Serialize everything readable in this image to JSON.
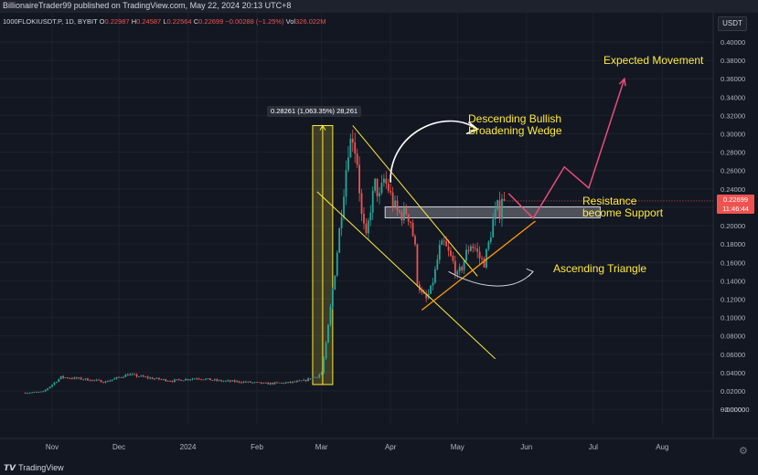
{
  "header": {
    "text": "BillionaireTrader99 published on TradingView.com, May 22, 2024 20:13 UTC+8"
  },
  "symbol": {
    "name": "1000FLOKIUSDT.P, 1D, BYBIT",
    "o_label": "O",
    "o": "0.22987",
    "h_label": "H",
    "h": "0.24587",
    "l_label": "L",
    "l": "0.22564",
    "c_label": "C",
    "c": "0.22699",
    "change": "−0.00288 (−1.25%)",
    "vol_label": "Vol",
    "vol": "326.022M"
  },
  "currency_button": "USDT",
  "measure_label": "0.28261 (1,063.35%) 28,261",
  "last_price": {
    "value": "0.22699",
    "countdown": "11:46:44"
  },
  "annotations": {
    "expected": "Expected Movement",
    "wedge_line1": "Descending Bullish",
    "wedge_line2": "Broadening Wedge",
    "resistance_line1": "Resistance",
    "resistance_line2": "become Support",
    "triangle": "Ascending Triangle"
  },
  "footer": {
    "logo_mark": "𝙏𝙑",
    "logo_text": "TradingView",
    "gear": "⚙"
  },
  "colors": {
    "bg": "#131722",
    "up": "#26a69a",
    "down": "#ef5350",
    "annotation": "#ffeb3b",
    "support_line": "#ff9800",
    "projection": "#e84d7a",
    "measure": "#ffeb3b"
  },
  "chart_data": {
    "type": "candlestick",
    "title": "1000FLOKIUSDT.P, 1D, BYBIT",
    "x_axis": {
      "ticks": [
        "Nov",
        "Dec",
        "2024",
        "Feb",
        "Mar",
        "Apr",
        "May",
        "Jun",
        "Jul",
        "Aug"
      ]
    },
    "y_axis": {
      "ticks": [
        "0.40000",
        "0.38000",
        "0.36000",
        "0.34000",
        "0.32000",
        "0.30000",
        "0.28000",
        "0.26000",
        "0.24000",
        "0.22000",
        "0.20000",
        "0.18000",
        "0.16000",
        "0.14000",
        "0.12000",
        "0.10000",
        "0.08000",
        "0.06000",
        "0.04000",
        "0.02000",
        "0.00000",
        "−0.00000"
      ],
      "ylim": [
        -0.02,
        0.41
      ]
    },
    "grid": true,
    "price_path": [
      [
        "2023-10-20",
        0.018
      ],
      [
        "2023-10-28",
        0.019
      ],
      [
        "2023-11-05",
        0.035
      ],
      [
        "2023-11-15",
        0.033
      ],
      [
        "2023-11-25",
        0.03
      ],
      [
        "2023-12-05",
        0.038
      ],
      [
        "2023-12-15",
        0.034
      ],
      [
        "2023-12-25",
        0.031
      ],
      [
        "2024-01-05",
        0.034
      ],
      [
        "2024-01-15",
        0.031
      ],
      [
        "2024-01-25",
        0.03
      ],
      [
        "2024-02-05",
        0.028
      ],
      [
        "2024-02-15",
        0.029
      ],
      [
        "2024-02-22",
        0.031
      ],
      [
        "2024-02-28",
        0.036
      ],
      [
        "2024-03-01",
        0.04
      ],
      [
        "2024-03-03",
        0.07
      ],
      [
        "2024-03-05",
        0.11
      ],
      [
        "2024-03-07",
        0.15
      ],
      [
        "2024-03-09",
        0.195
      ],
      [
        "2024-03-11",
        0.24
      ],
      [
        "2024-03-13",
        0.285
      ],
      [
        "2024-03-15",
        0.298
      ],
      [
        "2024-03-17",
        0.27
      ],
      [
        "2024-03-19",
        0.21
      ],
      [
        "2024-03-21",
        0.185
      ],
      [
        "2024-03-23",
        0.22
      ],
      [
        "2024-03-25",
        0.245
      ],
      [
        "2024-03-27",
        0.23
      ],
      [
        "2024-03-29",
        0.25
      ],
      [
        "2024-03-31",
        0.24
      ],
      [
        "2024-04-02",
        0.225
      ],
      [
        "2024-04-04",
        0.215
      ],
      [
        "2024-04-06",
        0.212
      ],
      [
        "2024-04-08",
        0.215
      ],
      [
        "2024-04-10",
        0.205
      ],
      [
        "2024-04-12",
        0.175
      ],
      [
        "2024-04-13",
        0.14
      ],
      [
        "2024-04-15",
        0.125
      ],
      [
        "2024-04-17",
        0.12
      ],
      [
        "2024-04-19",
        0.13
      ],
      [
        "2024-04-21",
        0.15
      ],
      [
        "2024-04-23",
        0.175
      ],
      [
        "2024-04-25",
        0.18
      ],
      [
        "2024-04-27",
        0.17
      ],
      [
        "2024-04-29",
        0.16
      ],
      [
        "2024-05-01",
        0.145
      ],
      [
        "2024-05-03",
        0.155
      ],
      [
        "2024-05-05",
        0.17
      ],
      [
        "2024-05-07",
        0.18
      ],
      [
        "2024-05-09",
        0.175
      ],
      [
        "2024-05-11",
        0.165
      ],
      [
        "2024-05-13",
        0.16
      ],
      [
        "2024-05-15",
        0.18
      ],
      [
        "2024-05-17",
        0.205
      ],
      [
        "2024-05-19",
        0.22
      ],
      [
        "2024-05-20",
        0.215
      ],
      [
        "2024-05-21",
        0.233
      ],
      [
        "2024-05-22",
        0.227
      ]
    ],
    "measure": {
      "from": "2024-02-26",
      "to": "2024-03-06",
      "low": 0.027,
      "high": 0.309,
      "change": 0.28261,
      "percent": 1063.35
    },
    "resistance_zone": {
      "from": "2024-04-01",
      "to": "2024-06-30",
      "low": 0.2085,
      "high": 0.2205
    },
    "wedge_upper": [
      [
        "2024-03-15",
        0.309
      ],
      [
        "2024-05-10",
        0.145
      ]
    ],
    "wedge_lower": [
      [
        "2024-02-28",
        0.237
      ],
      [
        "2024-05-18",
        0.055
      ]
    ],
    "support_line": [
      [
        "2024-04-15",
        0.108
      ],
      [
        "2024-06-05",
        0.205
      ]
    ],
    "projection": [
      [
        "2024-05-24",
        0.235
      ],
      [
        "2024-06-04",
        0.208
      ],
      [
        "2024-06-18",
        0.264
      ],
      [
        "2024-06-29",
        0.241
      ],
      [
        "2024-07-15",
        0.36
      ]
    ],
    "last_price": 0.22699
  }
}
